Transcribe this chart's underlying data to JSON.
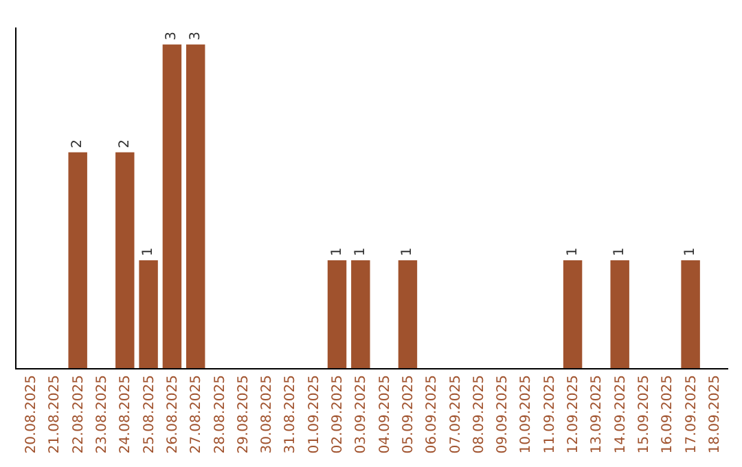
{
  "chart_data": {
    "type": "bar",
    "categories": [
      "20.08.2025",
      "21.08.2025",
      "22.08.2025",
      "23.08.2025",
      "24.08.2025",
      "25.08.2025",
      "26.08.2025",
      "27.08.2025",
      "28.08.2025",
      "29.08.2025",
      "30.08.2025",
      "31.08.2025",
      "01.09.2025",
      "02.09.2025",
      "03.09.2025",
      "04.09.2025",
      "05.09.2025",
      "06.09.2025",
      "07.09.2025",
      "08.09.2025",
      "09.09.2025",
      "10.09.2025",
      "11.09.2025",
      "12.09.2025",
      "13.09.2025",
      "14.09.2025",
      "15.09.2025",
      "16.09.2025",
      "17.09.2025",
      "18.09.2025"
    ],
    "values": [
      null,
      null,
      2,
      null,
      2,
      1,
      3,
      3,
      null,
      null,
      null,
      null,
      null,
      1,
      1,
      null,
      1,
      null,
      null,
      null,
      null,
      null,
      null,
      1,
      null,
      1,
      null,
      null,
      1,
      null
    ],
    "color": "#a0522d",
    "data_labels": true,
    "tick_labels": "x"
  }
}
